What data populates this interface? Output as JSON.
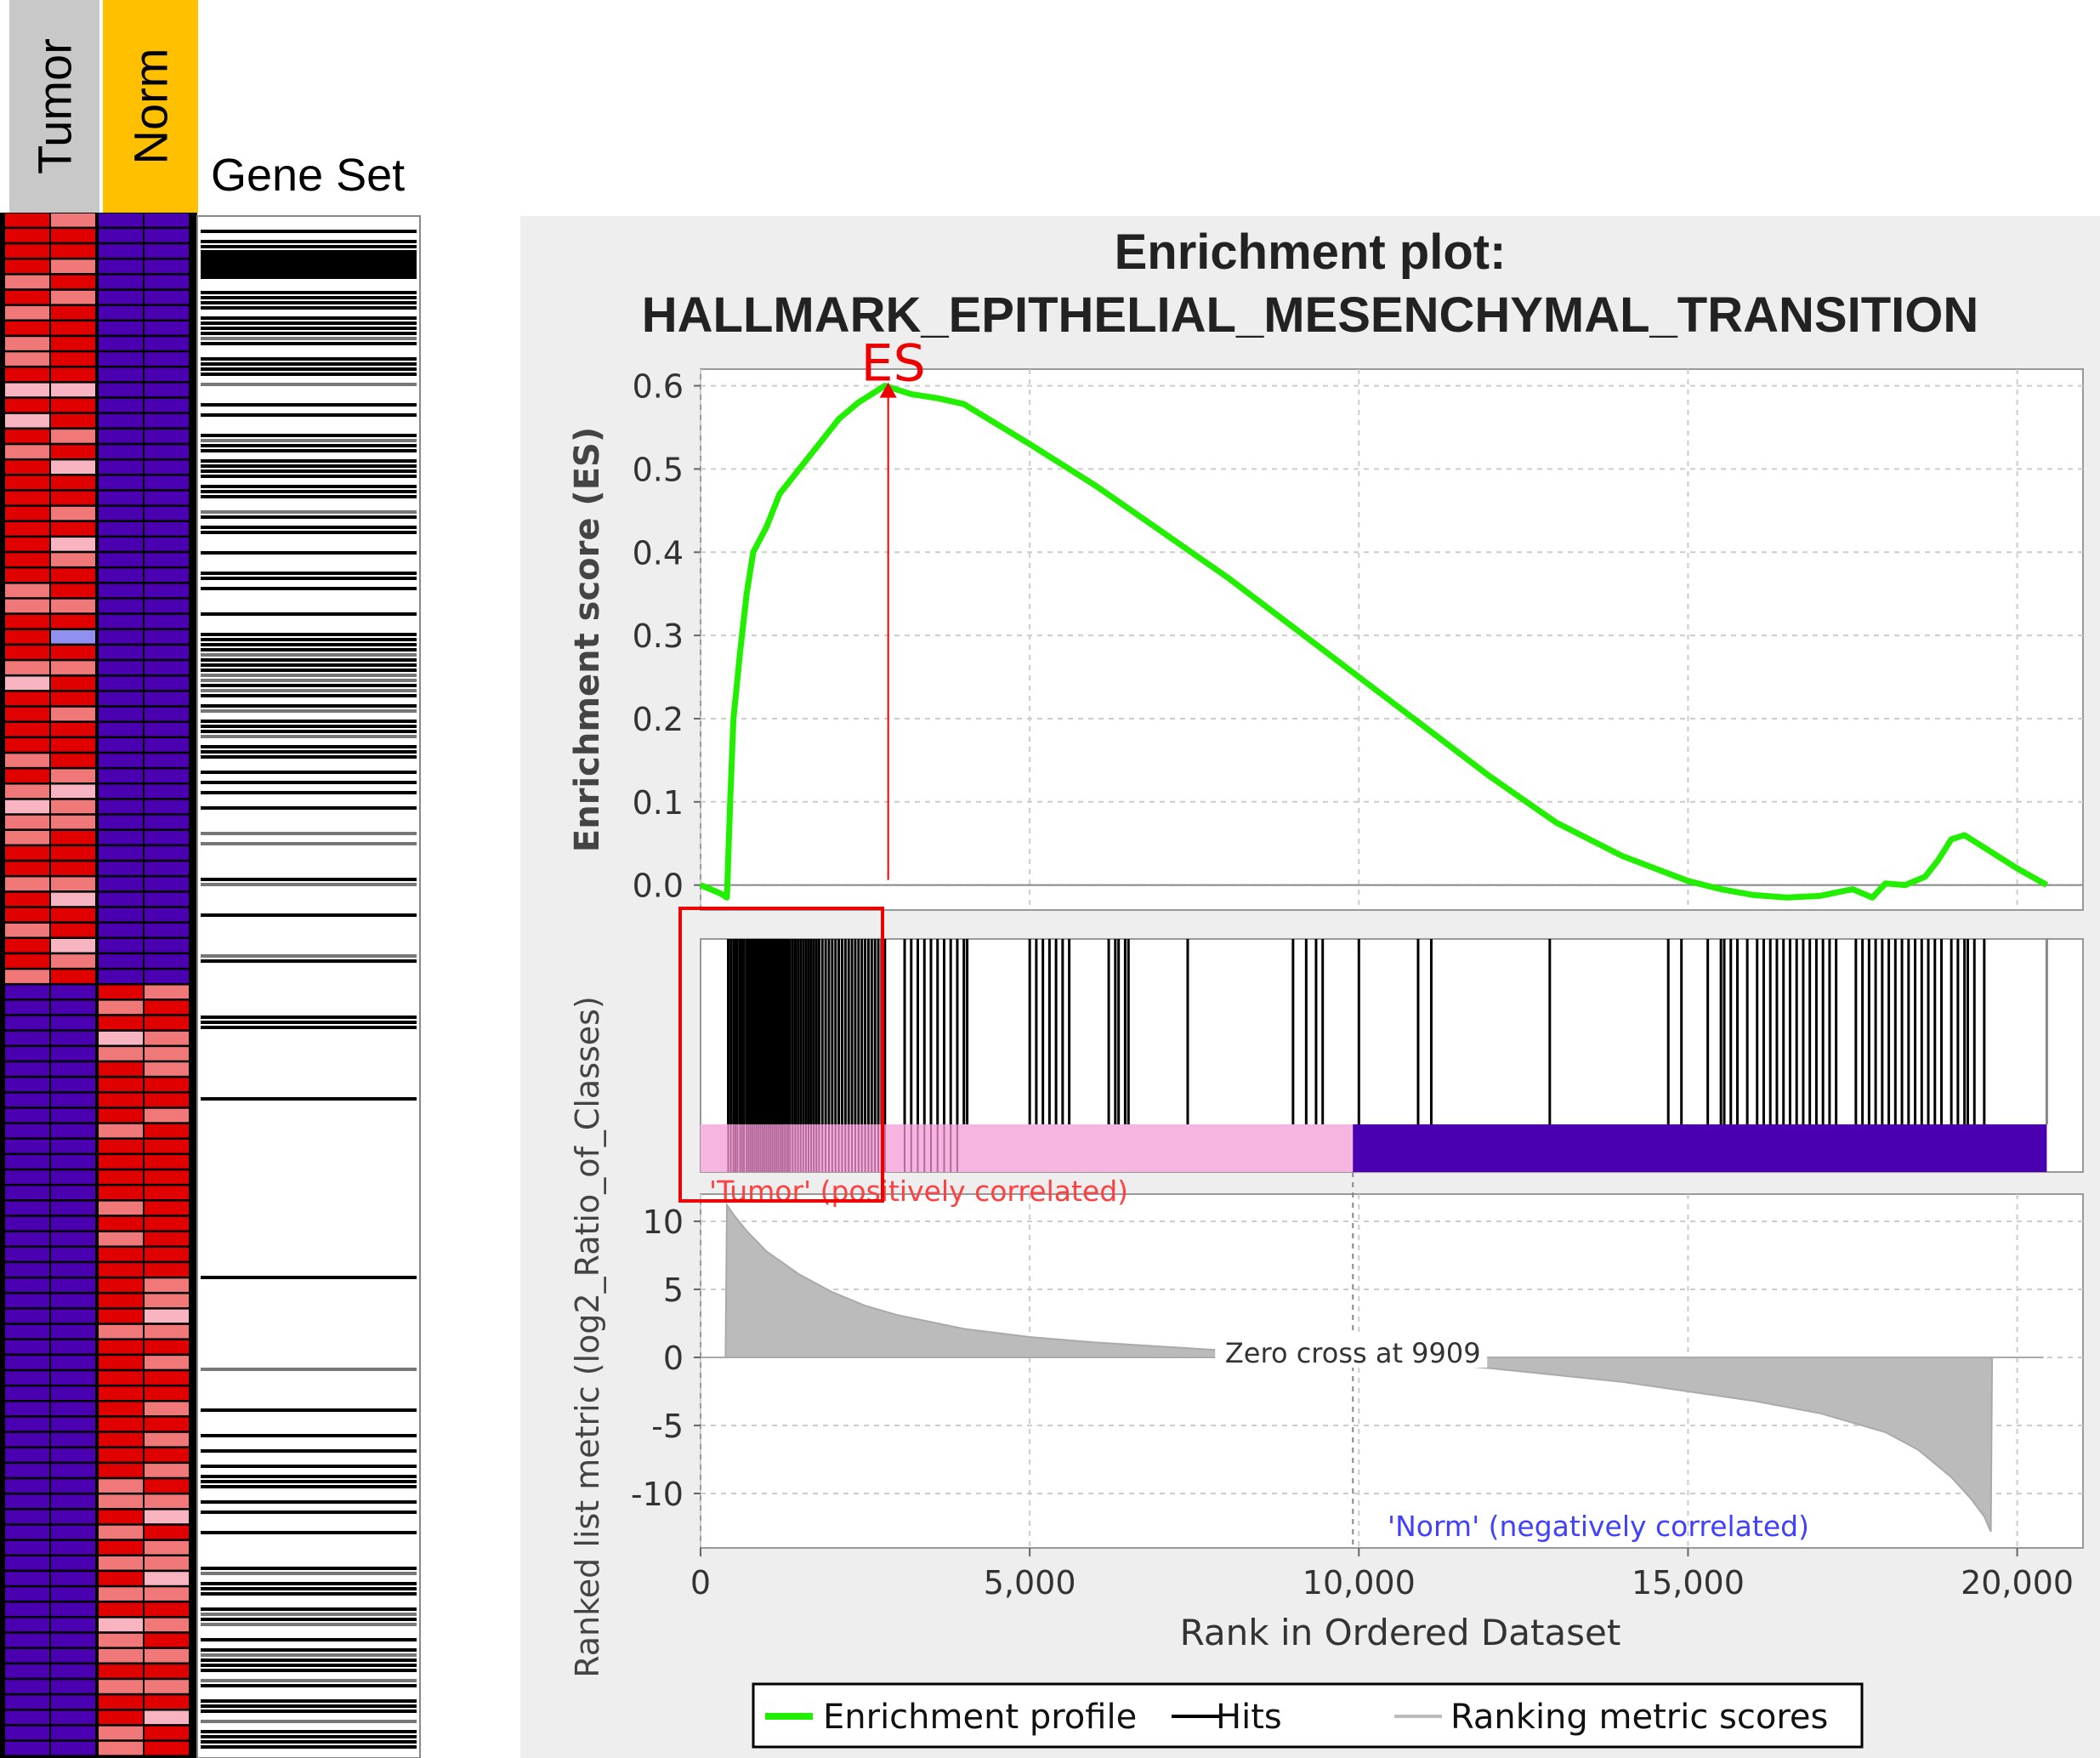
{
  "heatmap": {
    "classes": [
      {
        "name": "Tumor",
        "color": "#c8c8c8"
      },
      {
        "name": "Norm",
        "color": "#ffc000"
      }
    ],
    "gene_set_label": "Gene Set",
    "colors": {
      "high": "#e00000",
      "mid": "#f07878",
      "light": "#f8b4c0",
      "low": "#4a00b0",
      "lowlight": "#9090f0"
    }
  },
  "chart_data": {
    "type": "line",
    "title": "Enrichment plot:",
    "subtitle": "HALLMARK_EPITHELIAL_MESENCHYMAL_TRANSITION",
    "panels": {
      "enrichment": {
        "ylabel": "Enrichment score (ES)",
        "ylim": [
          -0.03,
          0.62
        ],
        "yticks": [
          "0.0",
          "0.1",
          "0.2",
          "0.3",
          "0.4",
          "0.5",
          "0.6"
        ],
        "ytick_values": [
          0.0,
          0.1,
          0.2,
          0.3,
          0.4,
          0.5,
          0.6
        ],
        "series": [
          {
            "name": "Enrichment profile",
            "color": "#22ee00",
            "x": [
              0,
              300,
              400,
              450,
              500,
              600,
              700,
              800,
              1000,
              1200,
              1500,
              1800,
              2100,
              2400,
              2600,
              2800,
              3200,
              3600,
              4000,
              5000,
              6000,
              7000,
              8000,
              9000,
              10000,
              11000,
              12000,
              13000,
              14000,
              15000,
              15500,
              16000,
              16500,
              17000,
              17500,
              17800,
              18000,
              18300,
              18600,
              18800,
              19000,
              19200,
              19500,
              20000,
              20450
            ],
            "y": [
              0.0,
              -0.01,
              -0.015,
              0.1,
              0.2,
              0.28,
              0.35,
              0.4,
              0.43,
              0.47,
              0.5,
              0.53,
              0.56,
              0.58,
              0.59,
              0.6,
              0.59,
              0.585,
              0.578,
              0.53,
              0.48,
              0.425,
              0.37,
              0.31,
              0.25,
              0.19,
              0.13,
              0.075,
              0.035,
              0.005,
              -0.005,
              -0.012,
              -0.015,
              -0.013,
              -0.005,
              -0.015,
              0.002,
              0.0,
              0.01,
              0.03,
              0.055,
              0.06,
              0.045,
              0.02,
              0.0
            ]
          }
        ],
        "es_marker": {
          "label": "ES",
          "x": 2850,
          "y": 0.6
        }
      },
      "hits": {
        "hit_ranks": [
          420,
          460,
          500,
          530,
          560,
          600,
          630,
          660,
          700,
          730,
          760,
          790,
          820,
          850,
          880,
          910,
          940,
          970,
          1000,
          1030,
          1060,
          1090,
          1120,
          1150,
          1180,
          1210,
          1240,
          1270,
          1300,
          1330,
          1360,
          1400,
          1440,
          1480,
          1520,
          1560,
          1600,
          1640,
          1680,
          1720,
          1760,
          1800,
          1850,
          1900,
          1950,
          2000,
          2050,
          2100,
          2150,
          2200,
          2250,
          2300,
          2350,
          2400,
          2450,
          2500,
          2550,
          2600,
          2650,
          2700,
          2750,
          2800,
          3100,
          3200,
          3300,
          3400,
          3500,
          3600,
          3700,
          3800,
          3900,
          4000,
          4050,
          5000,
          5100,
          5200,
          5300,
          5400,
          5500,
          5600,
          6200,
          6300,
          6350,
          6450,
          6500,
          7400,
          9000,
          9200,
          9350,
          9450,
          10000,
          10900,
          11100,
          12900,
          14700,
          14900,
          15300,
          15500,
          15550,
          15650,
          15750,
          15900,
          16050,
          16150,
          16250,
          16350,
          16450,
          16550,
          16650,
          16750,
          16850,
          16950,
          17050,
          17150,
          17250,
          17550,
          17650,
          17750,
          17850,
          17950,
          18050,
          18150,
          18250,
          18350,
          18450,
          18550,
          18650,
          18750,
          18850,
          19000,
          19100,
          19200,
          19250,
          19350,
          19500,
          20450
        ],
        "bar": {
          "positive_color": "#f6b4e0",
          "negative_color": "#4a00b0",
          "zero_cross_rank": 9909
        }
      },
      "ranked_metric": {
        "ylabel": "Ranked list metric (log2_Ratio_of_Classes)",
        "ylim": [
          -14,
          12
        ],
        "yticks": [
          "10",
          "5",
          "0",
          "-5",
          "-10"
        ],
        "ytick_values": [
          10,
          5,
          0,
          -5,
          -10
        ],
        "x": [
          0,
          380,
          400,
          500,
          700,
          1000,
          1500,
          2000,
          2500,
          3000,
          4000,
          5000,
          6000,
          7000,
          8000,
          9000,
          9909,
          11000,
          12000,
          13000,
          14000,
          15000,
          16000,
          17000,
          18000,
          18500,
          19000,
          19300,
          19500,
          19600,
          19620,
          20400
        ],
        "y": [
          0,
          0,
          11.2,
          10.5,
          9.3,
          7.8,
          6.1,
          4.8,
          3.8,
          3.1,
          2.1,
          1.5,
          1.1,
          0.8,
          0.5,
          0.25,
          0,
          -0.4,
          -0.8,
          -1.3,
          -1.8,
          -2.5,
          -3.2,
          -4.1,
          -5.5,
          -6.8,
          -8.8,
          -10.4,
          -11.7,
          -12.8,
          0,
          0
        ],
        "annotations": {
          "zero_cross": "Zero cross at 9909",
          "positive": "'Tumor' (positively correlated)",
          "negative": "'Norm' (negatively correlated)"
        },
        "positive_color": "#ff4040",
        "negative_color": "#4040ff",
        "fill_color": "#bbbbbb"
      }
    },
    "xlabel": "Rank in Ordered Dataset",
    "xlim": [
      0,
      21000
    ],
    "xticks": [
      "0",
      "5,000",
      "10,000",
      "15,000",
      "20,000"
    ],
    "xtick_values": [
      0,
      5000,
      10000,
      15000,
      20000
    ],
    "legend": {
      "placement": "bottom",
      "items": [
        {
          "name": "Enrichment profile",
          "color": "#22ee00"
        },
        {
          "name": "Hits",
          "color": "#000000"
        },
        {
          "name": "Ranking metric scores",
          "color": "#bbbbbb"
        }
      ]
    },
    "grid": true
  }
}
